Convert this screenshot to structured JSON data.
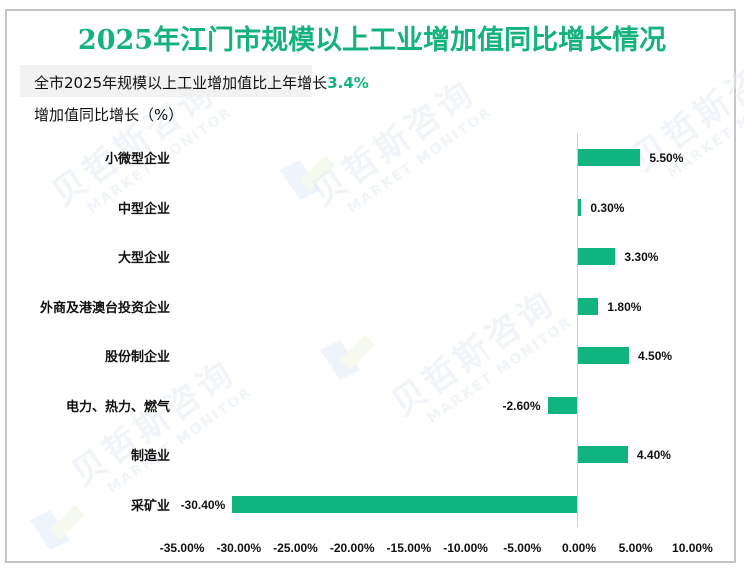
{
  "header": {
    "title": "2025年江门市规模以上工业增加值同比增长情况",
    "subtitle_prefix": "全市2025年规模以上工业增加值比上年增长",
    "subtitle_value": "3.4%",
    "y_axis_title": "增加值同比增长（%）"
  },
  "watermark": {
    "cn": "贝哲斯咨询",
    "en": "MARKET MONITOR"
  },
  "colors": {
    "title": "#14b27e",
    "bar": "#10b47e",
    "frame": "#c4c4c4",
    "subtitle_bg": "#f2f2f2"
  },
  "chart_data": {
    "type": "bar",
    "orientation": "horizontal",
    "title": "2025年江门市规模以上工业增加值同比增长情况",
    "subtitle": "全市2025年规模以上工业增加值比上年增长3.4%",
    "ylabel": "增加值同比增长（%）",
    "xlabel": "",
    "categories": [
      "小微型企业",
      "中型企业",
      "大型企业",
      "外商及港澳台投资企业",
      "股份制企业",
      "电力、热力、燃气",
      "制造业",
      "采矿业"
    ],
    "values": [
      5.5,
      0.3,
      3.3,
      1.8,
      4.5,
      -2.6,
      4.4,
      -30.4
    ],
    "value_labels": [
      "5.50%",
      "0.30%",
      "3.30%",
      "1.80%",
      "4.50%",
      "-2.60%",
      "4.40%",
      "-30.40%"
    ],
    "xlim": [
      -35,
      10
    ],
    "x_ticks": [
      "-35.00%",
      "-30.00%",
      "-25.00%",
      "-20.00%",
      "-15.00%",
      "-10.00%",
      "-5.00%",
      "0.00%",
      "5.00%",
      "10.00%"
    ],
    "x_tick_values": [
      -35,
      -30,
      -25,
      -20,
      -15,
      -10,
      -5,
      0,
      5,
      10
    ],
    "grid": false,
    "legend": "none"
  }
}
